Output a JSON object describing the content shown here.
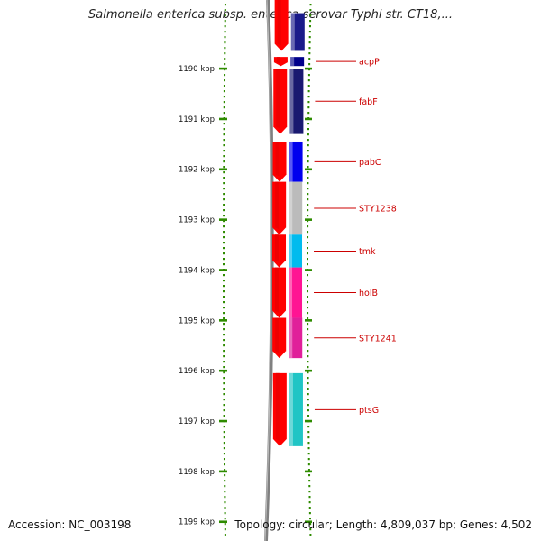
{
  "title": "Salmonella enterica subsp. enterica serovar Typhi str. CT18,...",
  "footer": {
    "accession": "Accession: NC_003198",
    "summary": "Topology: circular; Length: 4,809,037 bp; Genes: 4,502"
  },
  "axis": {
    "unit": "kbp",
    "tick_labels": [
      "1190 kbp",
      "1191 kbp",
      "1192 kbp",
      "1193 kbp",
      "1194 kbp",
      "1195 kbp",
      "1196 kbp",
      "1197 kbp",
      "1198 kbp",
      "1199 kbp"
    ]
  },
  "genes": [
    {
      "label": "acpP",
      "color": "#00008b",
      "start_kbp": 1189.77,
      "end_kbp": 1189.95
    },
    {
      "label": "fabF",
      "color": "#191970",
      "start_kbp": 1190.0,
      "end_kbp": 1191.3
    },
    {
      "label": "pabC",
      "color": "#0000ee",
      "start_kbp": 1191.45,
      "end_kbp": 1192.25
    },
    {
      "label": "STY1238",
      "color": "#bbbbbb",
      "start_kbp": 1192.25,
      "end_kbp": 1193.3
    },
    {
      "label": "tmk",
      "color": "#00bbee",
      "start_kbp": 1193.3,
      "end_kbp": 1193.95
    },
    {
      "label": "holB",
      "color": "#ff1493",
      "start_kbp": 1193.95,
      "end_kbp": 1194.95
    },
    {
      "label": "STY1241",
      "color": "#e0209a",
      "start_kbp": 1194.95,
      "end_kbp": 1195.75
    },
    {
      "label": "ptsG",
      "color": "#20c5c5",
      "start_kbp": 1196.05,
      "end_kbp": 1197.5
    }
  ],
  "top_partial_gene": {
    "color": "#1a1a8a",
    "start_kbp": 1188.9,
    "end_kbp": 1189.65
  },
  "cds_color": "#ff0000",
  "label_color": "#cc0000",
  "ring_color": "#808080",
  "tick_color": "#2e8b00"
}
